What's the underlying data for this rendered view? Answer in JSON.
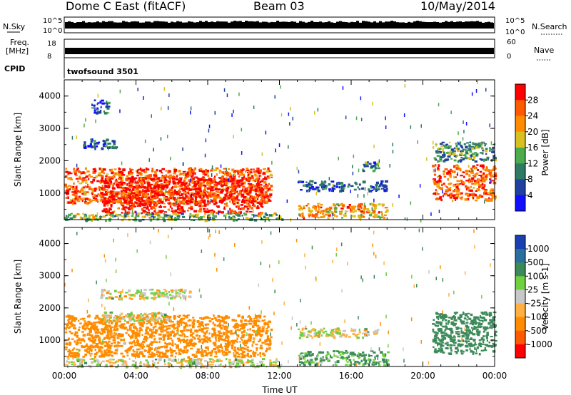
{
  "header": {
    "station": "Dome C East (fitACF)",
    "beam": "Beam 03",
    "date": "10/May/2014"
  },
  "summary_panels": {
    "nsky": {
      "label": "N.Sky",
      "left_top": "10^5",
      "left_bottom": "10^0",
      "right_top": "10^5",
      "right_bottom": "10^0",
      "right_label": "N.Search"
    },
    "freq": {
      "label_line1": "Freq.",
      "label_line2": "[MHz]",
      "left_top": "18",
      "left_bottom": "8",
      "right_top": "60",
      "right_bottom": "0",
      "right_label": "Nave"
    },
    "cpid": {
      "label": "CPID",
      "value": "twofsound 3501"
    }
  },
  "chart_data": [
    {
      "type": "heatmap",
      "panel": "power",
      "ylabel": "Slant Range [km]",
      "xlabel": "",
      "ylim": [
        180,
        4500
      ],
      "xlim": [
        0,
        24
      ],
      "y_ticks": [
        "1000",
        "2000",
        "3000",
        "4000"
      ],
      "colorbar": {
        "label": "Power [dB]",
        "ticks": [
          "4",
          "8",
          "12",
          "16",
          "20",
          "24",
          "28"
        ],
        "colors": [
          "#1010ff",
          "#2040a0",
          "#2e7a62",
          "#4cab4c",
          "#d8c020",
          "#ff8c00",
          "#ff5a00",
          "#ff0000"
        ]
      },
      "echo_regions": [
        {
          "t_start": 0.0,
          "t_end": 11.5,
          "r_min": 700,
          "r_max": 1800,
          "level": 26
        },
        {
          "t_start": 2.0,
          "t_end": 11.0,
          "r_min": 400,
          "r_max": 1500,
          "level": 30
        },
        {
          "t_start": 0.0,
          "t_end": 12.2,
          "r_min": 180,
          "r_max": 400,
          "level": 14
        },
        {
          "t_start": 1.0,
          "t_end": 3.0,
          "r_min": 2400,
          "r_max": 2700,
          "level": 8
        },
        {
          "t_start": 1.5,
          "t_end": 2.5,
          "r_min": 3500,
          "r_max": 3900,
          "level": 6
        },
        {
          "t_start": 13.0,
          "t_end": 18.0,
          "r_min": 250,
          "r_max": 700,
          "level": 22
        },
        {
          "t_start": 13.0,
          "t_end": 18.0,
          "r_min": 1100,
          "r_max": 1400,
          "level": 7
        },
        {
          "t_start": 16.5,
          "t_end": 17.5,
          "r_min": 1700,
          "r_max": 2000,
          "level": 10
        },
        {
          "t_start": 20.5,
          "t_end": 24.0,
          "r_min": 800,
          "r_max": 1900,
          "level": 26
        },
        {
          "t_start": 20.5,
          "t_end": 24.0,
          "r_min": 2000,
          "r_max": 2600,
          "level": 11
        }
      ]
    },
    {
      "type": "heatmap",
      "panel": "velocity",
      "ylabel": "Slant Range [km]",
      "xlabel": "Time UT",
      "ylim": [
        180,
        4500
      ],
      "xlim": [
        0,
        24
      ],
      "x_ticks": [
        "00:00",
        "04:00",
        "08:00",
        "12:00",
        "16:00",
        "20:00",
        "00:00"
      ],
      "y_ticks": [
        "1000",
        "2000",
        "3000",
        "4000"
      ],
      "colorbar": {
        "label": "Velocity [m s-1]",
        "ticks": [
          "1000",
          "500",
          "100",
          "25",
          "-25",
          "-100",
          "-500",
          "-1000"
        ],
        "colors": [
          "#1a3fb0",
          "#2a6fa0",
          "#3c8a5a",
          "#6fd040",
          "#c8c8c8",
          "#ffb040",
          "#ff8c00",
          "#ff5a00",
          "#ff0000"
        ]
      },
      "echo_regions": [
        {
          "t_start": 0.0,
          "t_end": 11.5,
          "r_min": 500,
          "r_max": 1800,
          "level": -300
        },
        {
          "t_start": 2.0,
          "t_end": 6.0,
          "r_min": 1600,
          "r_max": 1900,
          "level": 0
        },
        {
          "t_start": 0.0,
          "t_end": 12.0,
          "r_min": 180,
          "r_max": 450,
          "level": 0
        },
        {
          "t_start": 2.0,
          "t_end": 7.0,
          "r_min": 2300,
          "r_max": 2600,
          "level": 0
        },
        {
          "t_start": 13.0,
          "t_end": 18.0,
          "r_min": 250,
          "r_max": 700,
          "level": 120
        },
        {
          "t_start": 13.0,
          "t_end": 17.5,
          "r_min": 1100,
          "r_max": 1400,
          "level": 0
        },
        {
          "t_start": 20.5,
          "t_end": 24.0,
          "r_min": 600,
          "r_max": 1900,
          "level": 300
        }
      ]
    }
  ]
}
